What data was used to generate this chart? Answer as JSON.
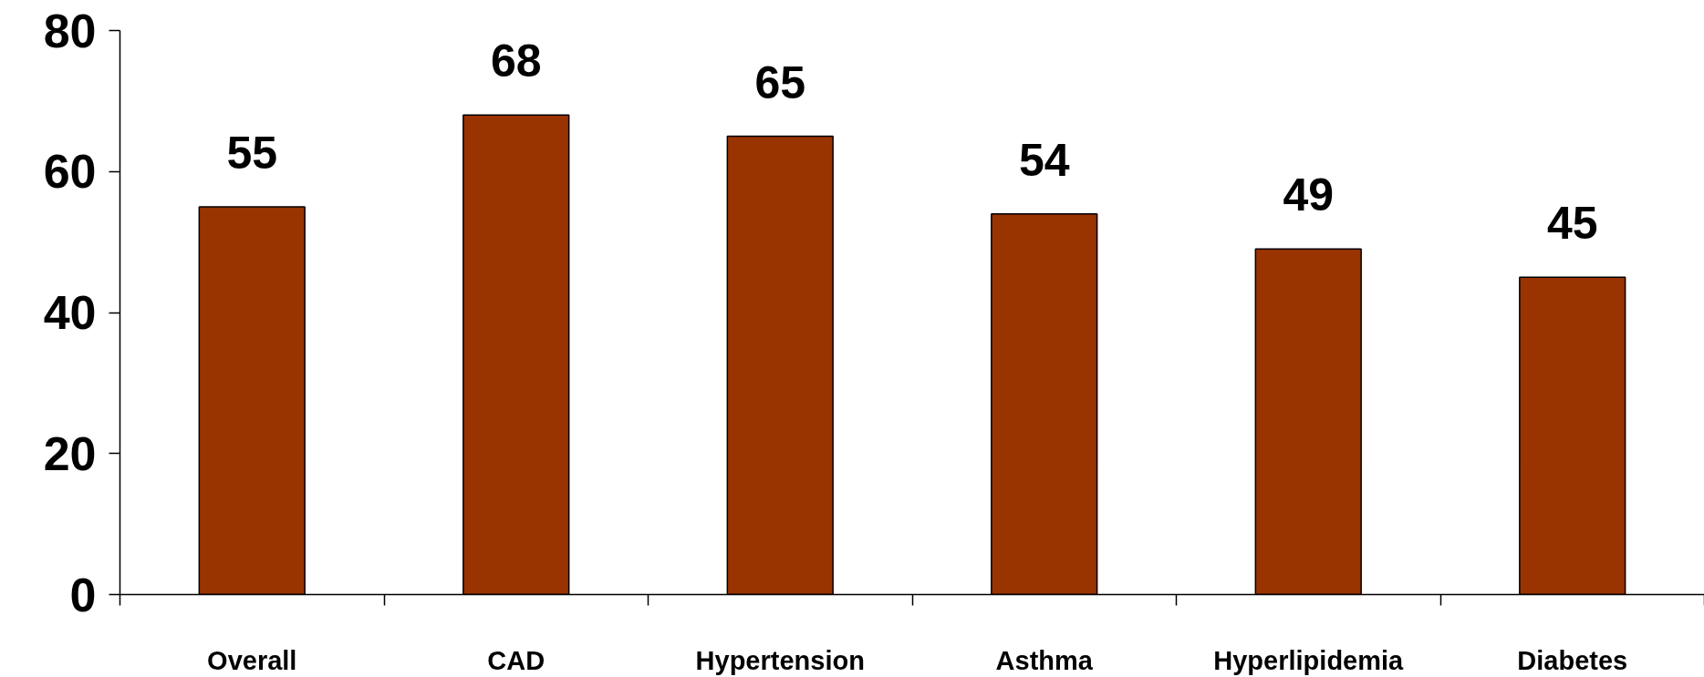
{
  "chart_data": {
    "type": "bar",
    "categories": [
      "Overall",
      "CAD",
      "Hypertension",
      "Asthma",
      "Hyperlipidemia",
      "Diabetes"
    ],
    "values": [
      55,
      68,
      65,
      54,
      49,
      45
    ],
    "color": "#993300",
    "ylim": [
      0,
      80
    ],
    "yticks": [
      0,
      20,
      40,
      60,
      80
    ],
    "data_labels": true,
    "grid": false
  }
}
